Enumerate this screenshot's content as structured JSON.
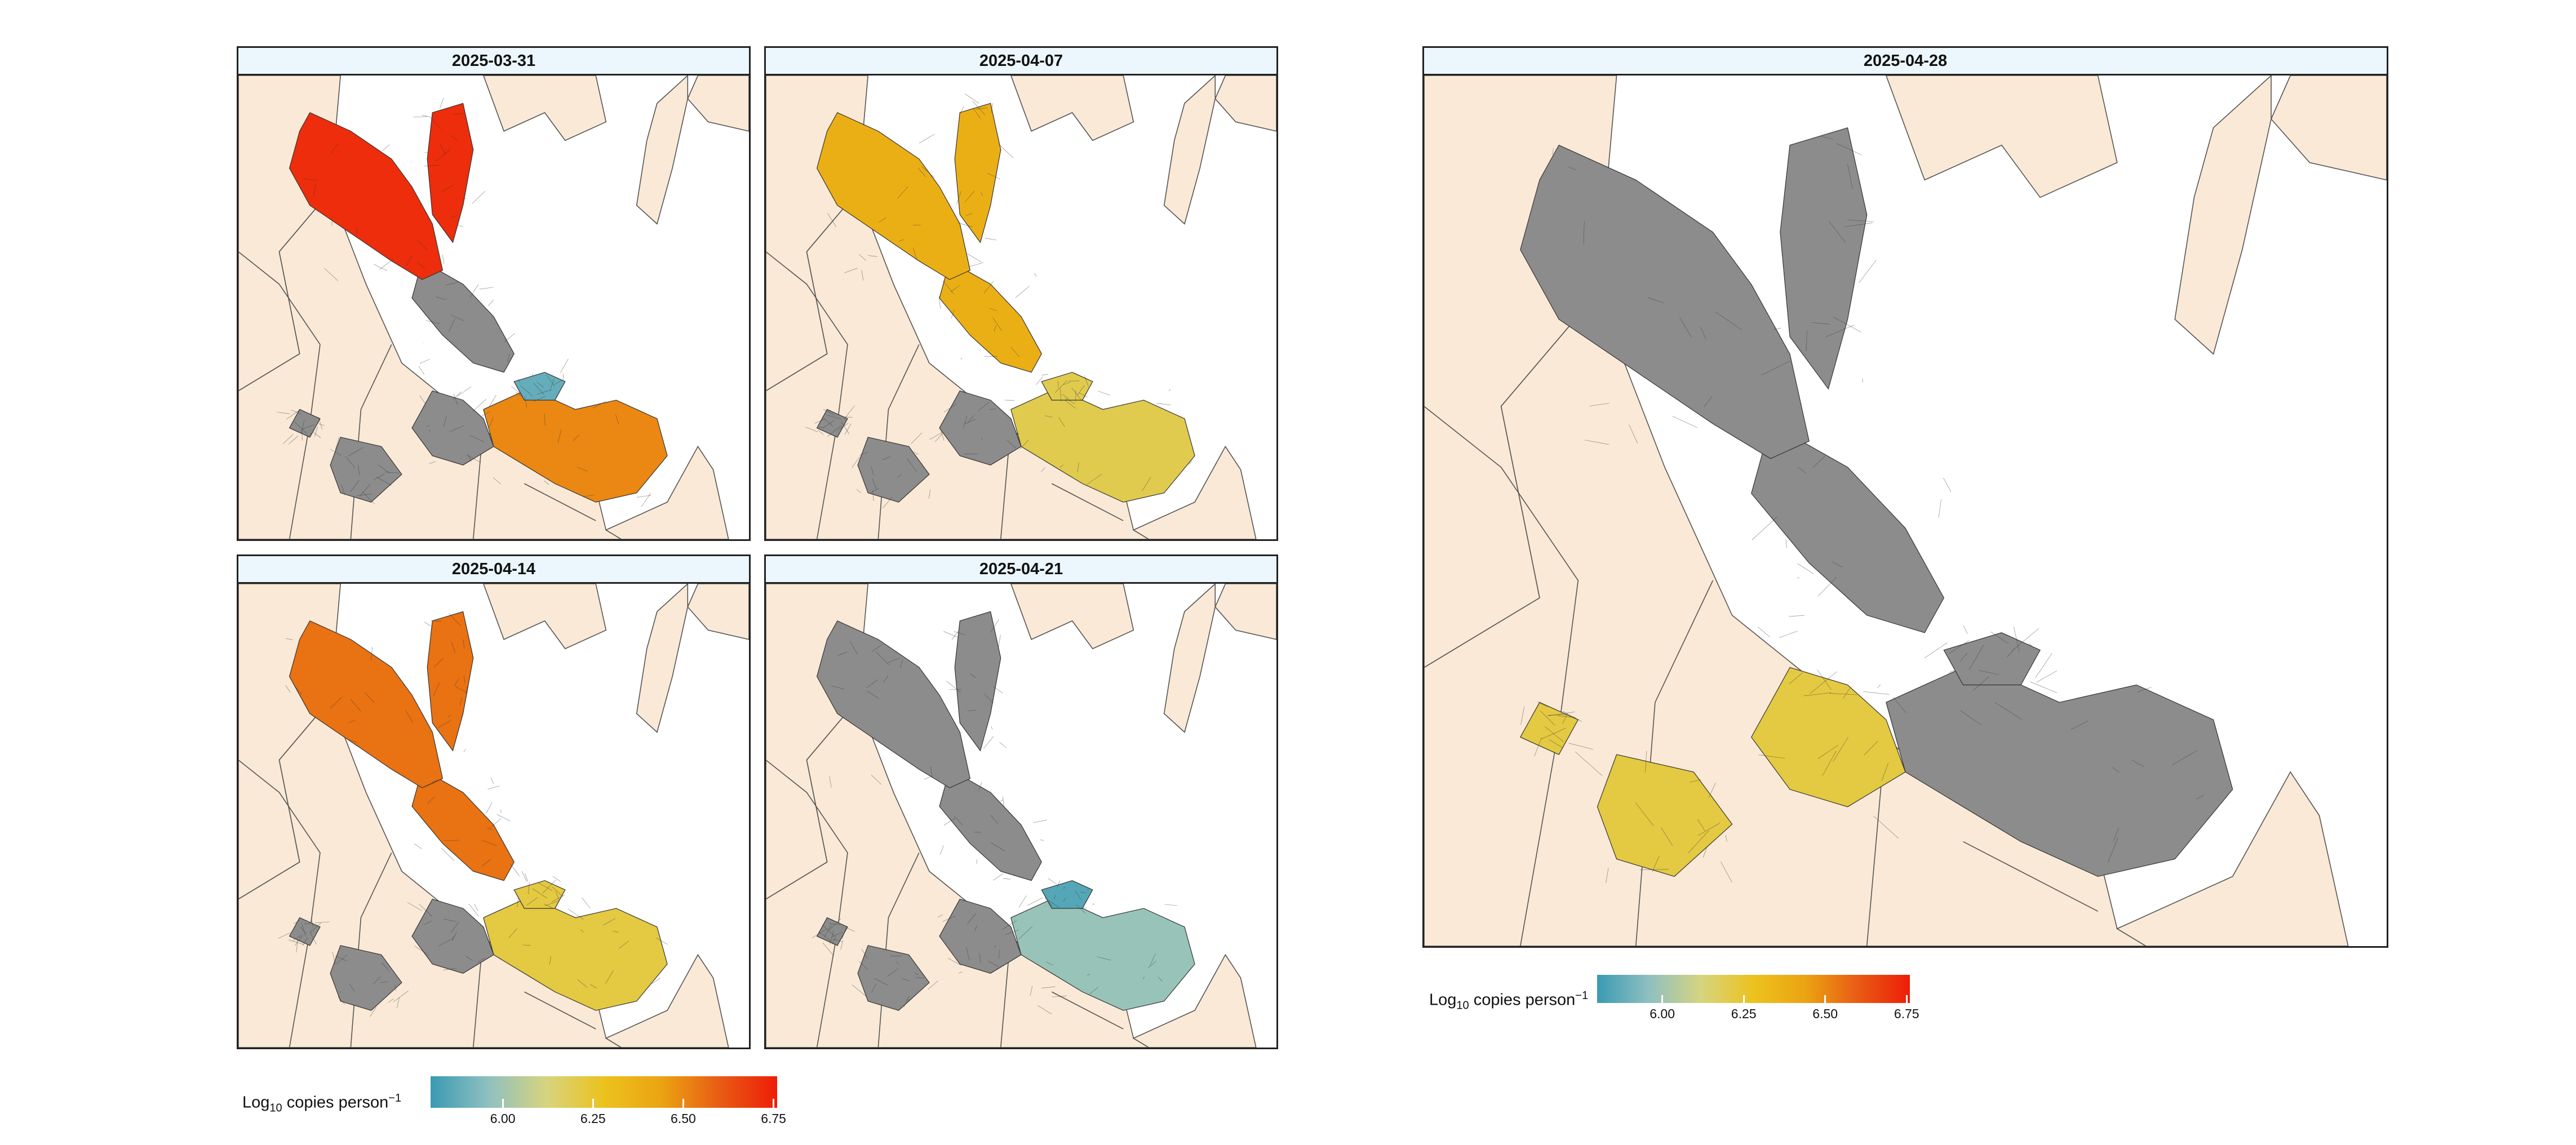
{
  "colors": {
    "land": "#f9e9d6",
    "water": "#ffffff",
    "no_data": "#8c8c8c",
    "strip_background": "#ebf7fd",
    "scale": [
      "#3a9ab3",
      "#8fc0c0",
      "#d6d47f",
      "#ecc21d",
      "#eba312",
      "#e85c14",
      "#ee1d08"
    ]
  },
  "legend_scale": {
    "min": 5.8,
    "max": 6.76,
    "ticks": [
      "6.00",
      "6.25",
      "6.50",
      "6.75"
    ]
  },
  "panels": [
    {
      "date": "2025-03-31",
      "regions": {
        "north": "6.72",
        "east": "6.5",
        "hampton": "no-data",
        "hotspot": "5.88",
        "south": "no-data"
      }
    },
    {
      "date": "2025-04-07",
      "regions": {
        "north": "6.38",
        "east": "6.2",
        "hampton": "6.38",
        "hotspot": "6.2",
        "south": "no-data"
      }
    },
    {
      "date": "2025-04-14",
      "regions": {
        "north": "6.55",
        "east": "6.22",
        "hampton": "6.55",
        "hotspot": "6.22",
        "south": "no-data"
      }
    },
    {
      "date": "2025-04-21",
      "regions": {
        "north": "no-data",
        "east": "5.98",
        "hampton": "no-data",
        "hotspot": "5.85",
        "south": "no-data"
      }
    },
    {
      "date": "2025-04-28",
      "regions": {
        "north": "no-data",
        "east": "no-data",
        "hampton": "no-data",
        "hotspot": "no-data",
        "south": "6.22"
      }
    }
  ],
  "legend_small": {
    "title_main": "Log",
    "title_sub": "10",
    "title_rest": " copies person",
    "title_sup": "−1"
  },
  "legend_large": {
    "title_main": "Log",
    "title_sub": "10",
    "title_rest": " copies person",
    "title_sup": "−1"
  }
}
